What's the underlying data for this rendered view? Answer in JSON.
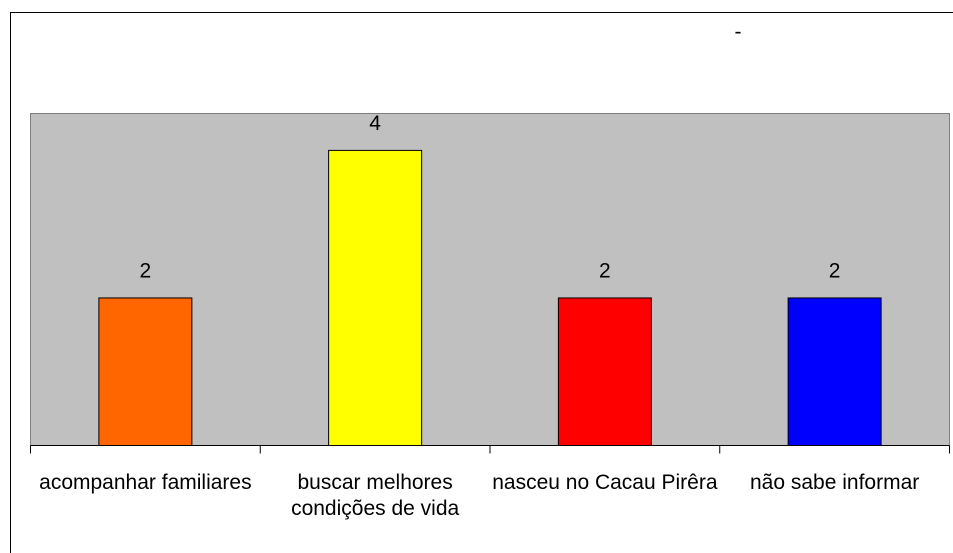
{
  "chart_data": {
    "type": "bar",
    "title": "-",
    "categories": [
      "acompanhar familiares",
      "buscar melhores condições de vida",
      "nasceu no Cacau Pirêra",
      "não sabe informar"
    ],
    "values": [
      2,
      4,
      2,
      2
    ],
    "colors": [
      "#ff6600",
      "#ffff00",
      "#ff0000",
      "#0000ff"
    ],
    "ylim": [
      0,
      4.5
    ]
  }
}
